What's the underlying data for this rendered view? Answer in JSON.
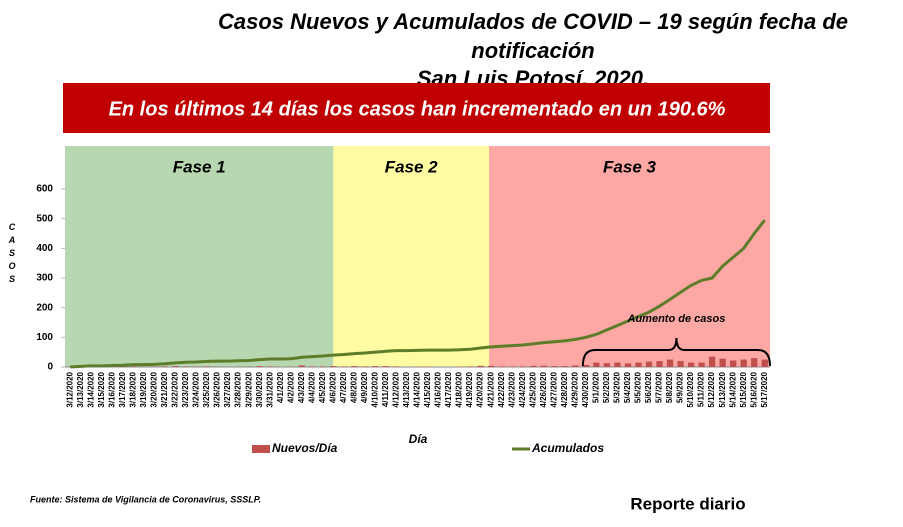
{
  "chart_data": {
    "type": "bar_line",
    "title_lines": [
      "Casos Nuevos y Acumulados de COVID – 19 según fecha de",
      "notificación",
      "San Luis Potosí, 2020."
    ],
    "banner": "En los últimos 14 días los casos han incrementado en un 190.6%",
    "phases": [
      {
        "label": "Fase 1",
        "color": "#b6d7b0"
      },
      {
        "label": "Fase 2",
        "color": "#fdfca2"
      },
      {
        "label": "Fase 3",
        "color": "#fda8a4"
      }
    ],
    "annotation": "Aumento de casos",
    "x_label": "Día",
    "y_label": "CASOS",
    "categories": [
      "3/12/2020",
      "3/13/2020",
      "3/14/2020",
      "3/15/2020",
      "3/16/2020",
      "3/17/2020",
      "3/18/2020",
      "3/19/2020",
      "3/20/2020",
      "3/21/2020",
      "3/22/2020",
      "3/23/2020",
      "3/24/2020",
      "3/25/2020",
      "3/26/2020",
      "3/27/2020",
      "3/28/2020",
      "3/29/2020",
      "3/30/2020",
      "3/31/2020",
      "4/1/2020",
      "4/2/2020",
      "4/3/2020",
      "4/4/2020",
      "4/5/2020",
      "4/6/2020",
      "4/7/2020",
      "4/8/2020",
      "4/9/2020",
      "4/10/2020",
      "4/11/2020",
      "4/12/2020",
      "4/13/2020",
      "4/14/2020",
      "4/15/2020",
      "4/16/2020",
      "4/17/2020",
      "4/18/2020",
      "4/19/2020",
      "4/20/2020",
      "4/21/2020",
      "4/22/2020",
      "4/23/2020",
      "4/24/2020",
      "4/25/2020",
      "4/26/2020",
      "4/27/2020",
      "4/28/2020",
      "4/29/2020",
      "4/30/2020",
      "5/1/2020",
      "5/2/2020",
      "5/3/2020",
      "5/4/2020",
      "5/5/2020",
      "5/6/2020",
      "5/7/2020",
      "5/8/2020",
      "5/9/2020",
      "5/10/2020",
      "5/11/2020",
      "5/12/2020",
      "5/13/2020",
      "5/14/2020",
      "5/15/2020",
      "5/16/2020",
      "5/17/2020"
    ],
    "series": [
      {
        "name": "Nuevos/Día",
        "color": "#c0504d",
        "kind": "bar",
        "values": [
          0,
          2,
          2,
          0,
          1,
          1,
          2,
          0,
          1,
          2,
          3,
          2,
          1,
          2,
          1,
          0,
          1,
          1,
          3,
          2,
          0,
          1,
          5,
          2,
          2,
          3,
          2,
          3,
          2,
          3,
          3,
          2,
          0,
          1,
          1,
          0,
          0,
          1,
          2,
          4,
          4,
          2,
          2,
          2,
          4,
          4,
          3,
          3,
          5,
          7,
          15,
          13,
          15,
          12,
          15,
          18,
          20,
          25,
          20,
          15,
          15,
          35,
          28,
          22,
          25,
          30,
          25
        ]
      },
      {
        "name": "Acumulados",
        "color": "#5e7d2a",
        "kind": "line",
        "values": [
          0,
          2,
          4,
          4,
          5,
          6,
          8,
          8,
          9,
          11,
          14,
          16,
          17,
          19,
          20,
          20,
          21,
          22,
          25,
          27,
          27,
          28,
          33,
          35,
          37,
          40,
          42,
          45,
          47,
          50,
          53,
          55,
          55,
          56,
          57,
          57,
          57,
          58,
          60,
          64,
          68,
          70,
          72,
          74,
          78,
          82,
          85,
          88,
          93,
          100,
          110,
          125,
          140,
          155,
          170,
          185,
          205,
          228,
          252,
          275,
          292,
          300,
          340,
          370,
          400,
          450,
          495
        ]
      }
    ],
    "ylim": [
      0,
      600
    ],
    "yticks": [
      0,
      100,
      200,
      300,
      400,
      500,
      600
    ],
    "grid": false,
    "legend": "bottom",
    "source": "Fuente: Sistema de Vigilancia de Coronavirus, SSSLP.",
    "footer": "Reporte diario"
  }
}
